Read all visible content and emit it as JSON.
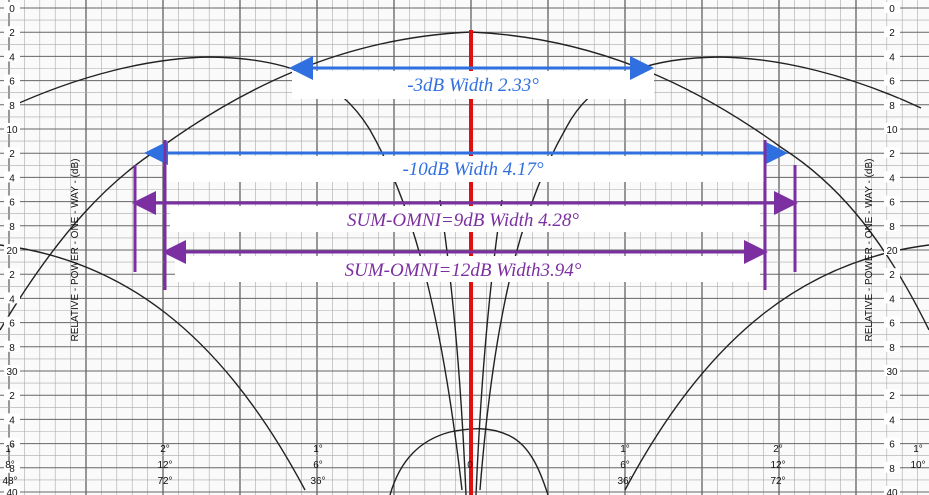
{
  "annotations": [
    "-3dB Width 2.33°",
    "-10dB Width 4.17°",
    "SUM-OMNI=9dB Width 4.28°",
    "SUM-OMNI=12dB Width3.94°"
  ],
  "axis_label": "RELATIVE - POWER - ONE - WAY - (dB)",
  "y_labels": [
    "0",
    "2",
    "4",
    "6",
    "8",
    "10",
    "2",
    "4",
    "6",
    "8",
    "20",
    "2",
    "4",
    "6",
    "8",
    "30",
    "2",
    "4",
    "6",
    "8",
    "40"
  ],
  "x_labels": [
    [
      "1°",
      "8°",
      "48°"
    ],
    [
      "2°",
      "12°",
      "72°"
    ],
    [
      "1°",
      "6°",
      "36°"
    ],
    [
      "0"
    ],
    [
      "1°",
      "6°",
      "36°"
    ],
    [
      "2°",
      "12°",
      "72°"
    ],
    [
      "1°",
      "10°"
    ]
  ]
}
